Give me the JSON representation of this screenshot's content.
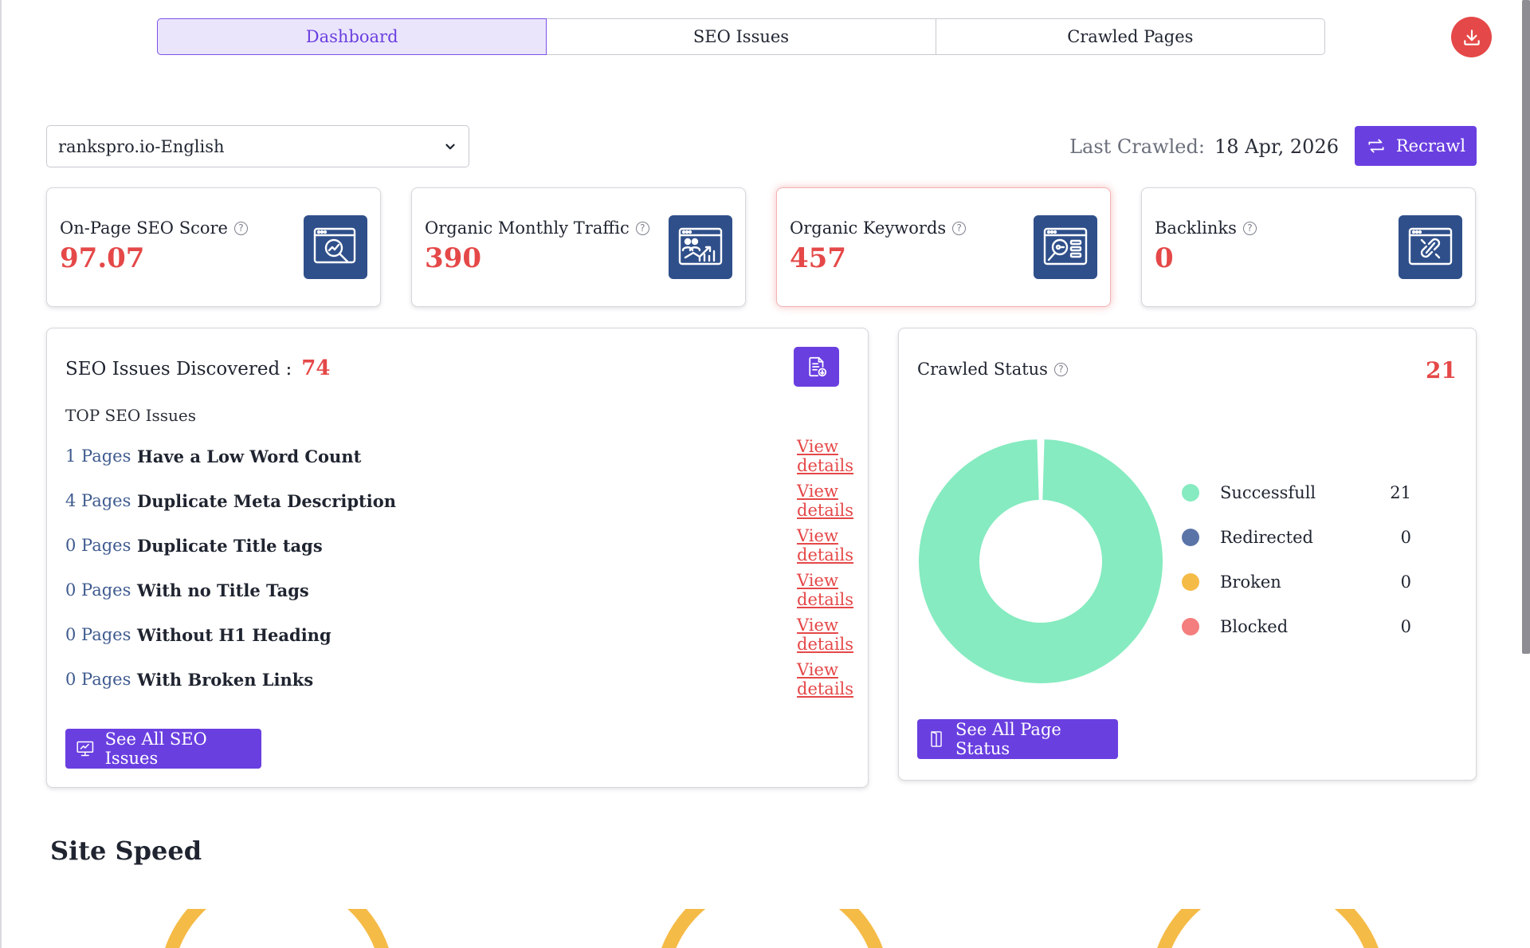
{
  "tabs": [
    {
      "label": "Dashboard",
      "active": true
    },
    {
      "label": "SEO Issues",
      "active": false
    },
    {
      "label": "Crawled Pages",
      "active": false
    }
  ],
  "download_icon": "download-icon",
  "project_select": {
    "value": "rankspro.io-English"
  },
  "last_crawled": {
    "label": "Last Crawled:",
    "date": "18 Apr, 2026"
  },
  "recrawl": {
    "label": "Recrawl"
  },
  "stats": [
    {
      "title": "On-Page SEO Score",
      "value": "97.07",
      "icon": "seo-score-icon"
    },
    {
      "title": "Organic Monthly Traffic",
      "value": "390",
      "icon": "traffic-icon"
    },
    {
      "title": "Organic Keywords",
      "value": "457",
      "icon": "keywords-icon"
    },
    {
      "title": "Backlinks",
      "value": "0",
      "icon": "backlinks-icon"
    }
  ],
  "issues": {
    "title": "SEO Issues Discovered :",
    "count": "74",
    "top_label": "TOP SEO Issues",
    "link_label": "View details",
    "rows": [
      {
        "pages": "1 Pages",
        "text": "Have a Low Word Count"
      },
      {
        "pages": "4 Pages",
        "text": "Duplicate Meta Description"
      },
      {
        "pages": "0 Pages",
        "text": "Duplicate Title tags"
      },
      {
        "pages": "0 Pages",
        "text": "With no Title Tags"
      },
      {
        "pages": "0 Pages",
        "text": "Without H1 Heading"
      },
      {
        "pages": "0 Pages",
        "text": "With Broken Links"
      }
    ],
    "button_label": "See All SEO Issues"
  },
  "crawled_status": {
    "title": "Crawled Status",
    "total": "21",
    "items": [
      {
        "label": "Successfull",
        "count": "21",
        "value": 21,
        "color": "#86ebc0"
      },
      {
        "label": "Redirected",
        "count": "0",
        "value": 0,
        "color": "#5b74a8"
      },
      {
        "label": "Broken",
        "count": "0",
        "value": 0,
        "color": "#f5bb47"
      },
      {
        "label": "Blocked",
        "count": "0",
        "value": 0,
        "color": "#f47d7d"
      }
    ],
    "button_label": "See All Page Status"
  },
  "site_speed": {
    "title": "Site Speed"
  },
  "colors": {
    "accent": "#6a3fe0",
    "danger": "#e54848",
    "icon_bg": "#2f4f8a",
    "gauge": "#f5bb47"
  }
}
